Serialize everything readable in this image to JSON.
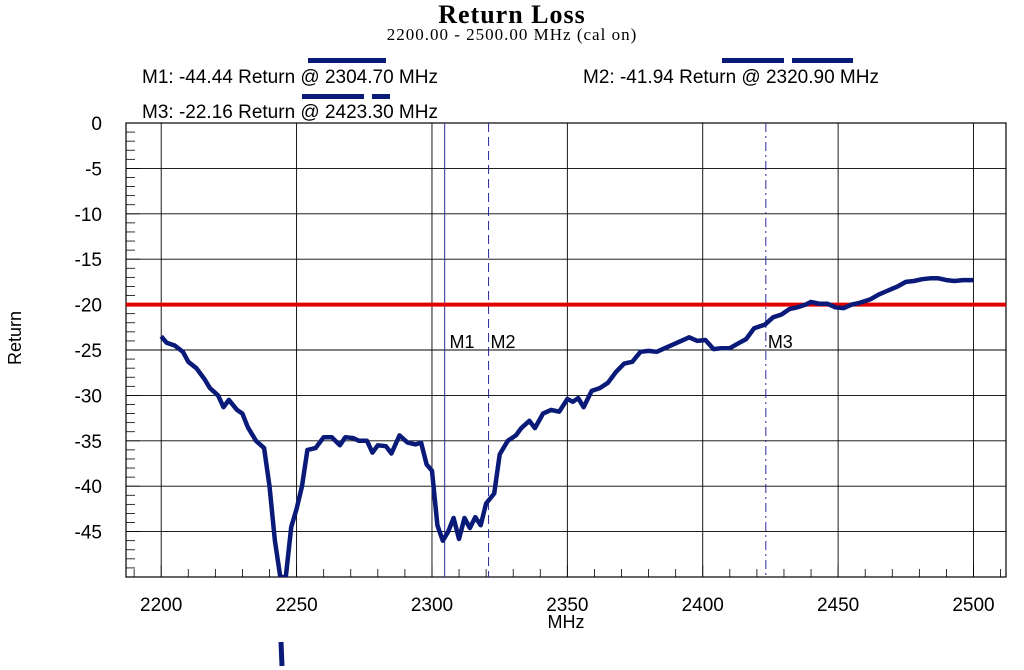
{
  "chart_data": {
    "type": "line",
    "title": "Return Loss",
    "subtitle": "2200.00 - 2500.00 MHz (cal on)",
    "xlabel": "MHz",
    "ylabel": "Return",
    "xlim": [
      2187,
      2512
    ],
    "ylim": [
      -50,
      0
    ],
    "x_ticks": [
      2200,
      2250,
      2300,
      2350,
      2400,
      2450,
      2500
    ],
    "x_tick_labels": [
      "2200",
      "2250",
      "2300",
      "2350",
      "2400",
      "2450",
      "2500"
    ],
    "y_ticks": [
      0,
      -5,
      -10,
      -15,
      -20,
      -25,
      -30,
      -35,
      -40,
      -45
    ],
    "y_tick_labels": [
      "0",
      "-5",
      "-10",
      "-15",
      "-20",
      "-25",
      "-30",
      "-35",
      "-40",
      "-45"
    ],
    "grid": true,
    "limit_line": {
      "y": -20,
      "color": "#e00000"
    },
    "trace_color": "#0a1a78",
    "marker_color": "#2a2a9a",
    "series": [
      {
        "values": [
          [
            2200,
            -23.5
          ],
          [
            2202,
            -24.2
          ],
          [
            2205,
            -24.5
          ],
          [
            2208,
            -25.2
          ],
          [
            2210,
            -26.3
          ],
          [
            2213,
            -27.0
          ],
          [
            2216,
            -28.2
          ],
          [
            2218,
            -29.2
          ],
          [
            2221,
            -30.0
          ],
          [
            2223,
            -31.3
          ],
          [
            2225,
            -30.5
          ],
          [
            2228,
            -31.6
          ],
          [
            2230,
            -32.0
          ],
          [
            2232,
            -33.5
          ],
          [
            2235,
            -35.0
          ],
          [
            2238,
            -35.8
          ],
          [
            2240,
            -40.0
          ],
          [
            2242,
            -46.0
          ],
          [
            2244,
            -50.0
          ],
          [
            2246,
            -50.0
          ],
          [
            2248,
            -44.5
          ],
          [
            2250,
            -42.5
          ],
          [
            2252,
            -40.0
          ],
          [
            2254,
            -36.0
          ],
          [
            2257,
            -35.8
          ],
          [
            2260,
            -34.6
          ],
          [
            2263,
            -34.6
          ],
          [
            2266,
            -35.5
          ],
          [
            2268,
            -34.6
          ],
          [
            2271,
            -34.7
          ],
          [
            2273,
            -35.0
          ],
          [
            2276,
            -35.0
          ],
          [
            2278,
            -36.3
          ],
          [
            2280,
            -35.5
          ],
          [
            2283,
            -35.6
          ],
          [
            2285,
            -36.4
          ],
          [
            2288,
            -34.4
          ],
          [
            2291,
            -35.2
          ],
          [
            2294,
            -35.4
          ],
          [
            2296,
            -35.2
          ],
          [
            2298,
            -37.6
          ],
          [
            2300,
            -38.3
          ],
          [
            2302,
            -44.3
          ],
          [
            2304,
            -46.0
          ],
          [
            2306,
            -45.0
          ],
          [
            2308,
            -43.5
          ],
          [
            2310,
            -45.8
          ],
          [
            2312,
            -43.5
          ],
          [
            2314,
            -44.6
          ],
          [
            2316,
            -43.4
          ],
          [
            2318,
            -44.3
          ],
          [
            2320,
            -41.9
          ],
          [
            2323,
            -40.8
          ],
          [
            2325,
            -36.5
          ],
          [
            2328,
            -35.0
          ],
          [
            2331,
            -34.4
          ],
          [
            2333,
            -33.6
          ],
          [
            2336,
            -32.8
          ],
          [
            2338,
            -33.6
          ],
          [
            2341,
            -32.0
          ],
          [
            2344,
            -31.6
          ],
          [
            2347,
            -31.8
          ],
          [
            2350,
            -30.4
          ],
          [
            2352,
            -30.7
          ],
          [
            2354,
            -30.3
          ],
          [
            2356,
            -31.3
          ],
          [
            2359,
            -29.5
          ],
          [
            2362,
            -29.2
          ],
          [
            2365,
            -28.6
          ],
          [
            2368,
            -27.4
          ],
          [
            2371,
            -26.5
          ],
          [
            2374,
            -26.3
          ],
          [
            2377,
            -25.2
          ],
          [
            2380,
            -25.1
          ],
          [
            2383,
            -25.2
          ],
          [
            2386,
            -24.8
          ],
          [
            2389,
            -24.4
          ],
          [
            2392,
            -24.0
          ],
          [
            2395,
            -23.6
          ],
          [
            2398,
            -24.0
          ],
          [
            2401,
            -23.9
          ],
          [
            2404,
            -24.9
          ],
          [
            2407,
            -24.8
          ],
          [
            2410,
            -24.8
          ],
          [
            2413,
            -24.3
          ],
          [
            2416,
            -23.8
          ],
          [
            2419,
            -22.6
          ],
          [
            2423,
            -22.2
          ],
          [
            2426,
            -21.4
          ],
          [
            2429,
            -21.1
          ],
          [
            2432,
            -20.5
          ],
          [
            2435,
            -20.3
          ],
          [
            2438,
            -20.0
          ],
          [
            2440,
            -19.7
          ],
          [
            2443,
            -19.9
          ],
          [
            2446,
            -19.9
          ],
          [
            2449,
            -20.3
          ],
          [
            2452,
            -20.4
          ],
          [
            2455,
            -20.0
          ],
          [
            2458,
            -19.8
          ],
          [
            2462,
            -19.4
          ],
          [
            2465,
            -18.9
          ],
          [
            2468,
            -18.5
          ],
          [
            2472,
            -18.0
          ],
          [
            2475,
            -17.5
          ],
          [
            2478,
            -17.4
          ],
          [
            2481,
            -17.2
          ],
          [
            2484,
            -17.1
          ],
          [
            2487,
            -17.1
          ],
          [
            2490,
            -17.3
          ],
          [
            2493,
            -17.4
          ],
          [
            2496,
            -17.3
          ],
          [
            2500,
            -17.3
          ]
        ]
      }
    ],
    "markers": [
      {
        "id": "M1",
        "label": "M1",
        "x": 2304.7,
        "style": "solid",
        "readout": "M1: -44.44 Return @ 2304.70 MHz"
      },
      {
        "id": "M2",
        "label": "M2",
        "x": 2320.9,
        "style": "dashed",
        "readout": "M2: -41.94 Return @ 2320.90 MHz"
      },
      {
        "id": "M3",
        "label": "M3",
        "x": 2423.3,
        "style": "dashdot",
        "readout": "M3: -22.16 Return @ 2423.30 MHz"
      }
    ]
  }
}
